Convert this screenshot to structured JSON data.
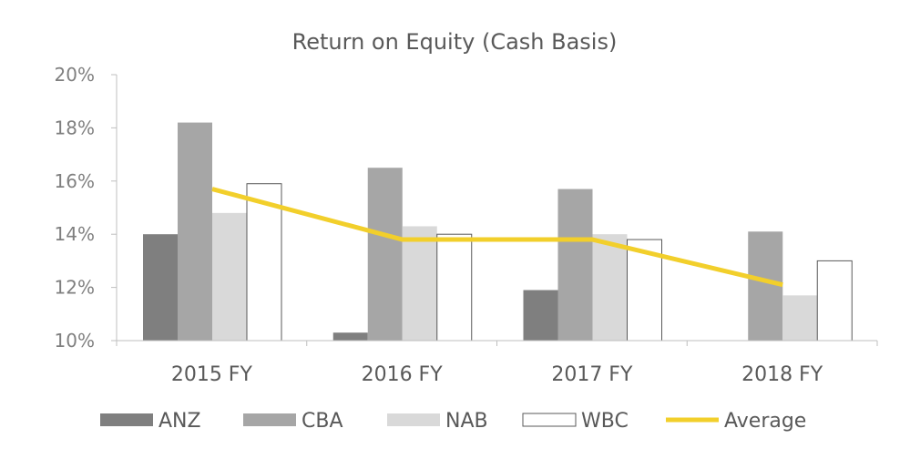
{
  "chart_data": {
    "type": "bar",
    "title": "Return on Equity (Cash Basis)",
    "xlabel": "",
    "ylabel": "",
    "categories": [
      "2015 FY",
      "2016 FY",
      "2017 FY",
      "2018 FY"
    ],
    "ylim": [
      10,
      20
    ],
    "yticks": [
      "10%",
      "12%",
      "14%",
      "16%",
      "18%",
      "20%"
    ],
    "grid": false,
    "legend_position": "bottom",
    "series": [
      {
        "name": "ANZ",
        "type": "bar",
        "color": "#7f7f7f",
        "values": [
          14.0,
          10.3,
          11.9,
          null
        ]
      },
      {
        "name": "CBA",
        "type": "bar",
        "color": "#a6a6a6",
        "values": [
          18.2,
          16.5,
          15.7,
          14.1
        ]
      },
      {
        "name": "NAB",
        "type": "bar",
        "color": "#d9d9d9",
        "values": [
          14.8,
          14.3,
          14.0,
          11.7
        ]
      },
      {
        "name": "WBC",
        "type": "bar",
        "color": "#ffffff",
        "values": [
          15.9,
          14.0,
          13.8,
          13.0
        ]
      },
      {
        "name": "Average",
        "type": "line",
        "color": "#f2cf2b",
        "values": [
          15.7,
          13.8,
          13.8,
          12.1
        ]
      }
    ]
  }
}
